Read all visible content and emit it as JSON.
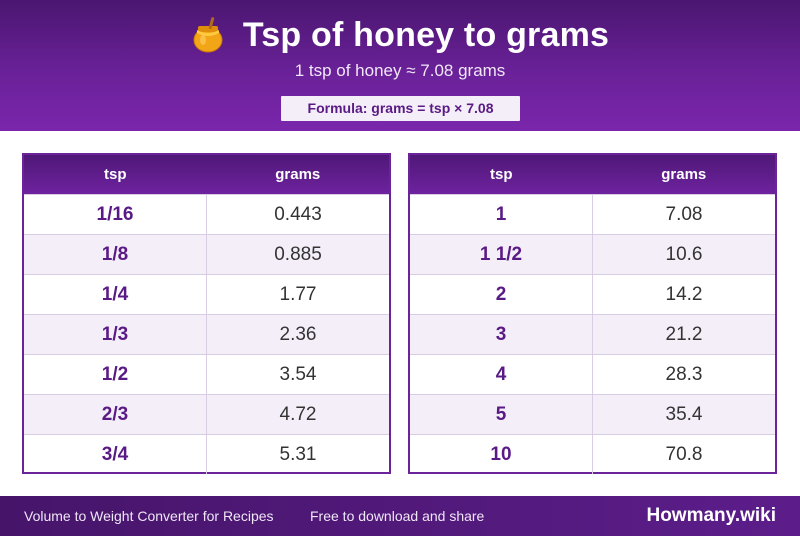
{
  "header": {
    "icon": "honey-pot-icon",
    "title": "Tsp of honey to grams",
    "subtitle": "1 tsp of honey ≈ 7.08 grams",
    "formula": "Formula: grams = tsp × 7.08"
  },
  "tables": [
    {
      "headers": [
        "tsp",
        "grams"
      ],
      "rows": [
        [
          "1/16",
          "0.443"
        ],
        [
          "1/8",
          "0.885"
        ],
        [
          "1/4",
          "1.77"
        ],
        [
          "1/3",
          "2.36"
        ],
        [
          "1/2",
          "3.54"
        ],
        [
          "2/3",
          "4.72"
        ],
        [
          "3/4",
          "5.31"
        ]
      ]
    },
    {
      "headers": [
        "tsp",
        "grams"
      ],
      "rows": [
        [
          "1",
          "7.08"
        ],
        [
          "1 1/2",
          "10.6"
        ],
        [
          "2",
          "14.2"
        ],
        [
          "3",
          "21.2"
        ],
        [
          "4",
          "28.3"
        ],
        [
          "5",
          "35.4"
        ],
        [
          "10",
          "70.8"
        ]
      ]
    }
  ],
  "footer": {
    "left": "Volume to Weight Converter for Recipes",
    "middle": "Free to download and share",
    "brand": "Howmany.wiki"
  },
  "colors": {
    "header_bg": "#6a2198",
    "accent": "#5a1a85",
    "row_alt": "#f4eef9",
    "footer_bg": "#4d176f"
  }
}
